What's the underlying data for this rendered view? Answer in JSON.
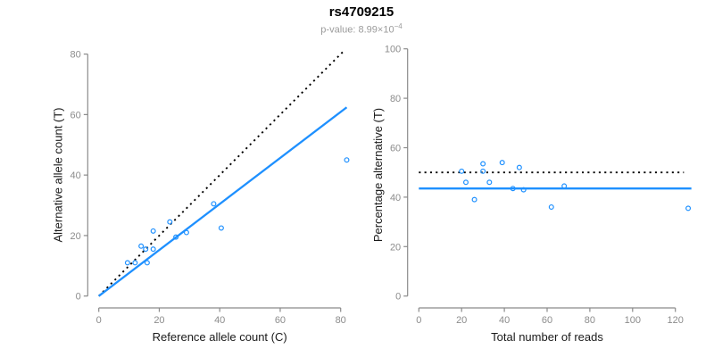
{
  "header": {
    "title": "rs4709215",
    "subtitle_prefix": "p-value: 8.99×10",
    "subtitle_exponent": "−4"
  },
  "colors": {
    "accent_blue": "#1E90FF",
    "identity_black": "#000000",
    "axis_gray": "#8a8a8a",
    "tick_text_gray": "#8c8c8c",
    "axis_title_color": "#1a1a1a"
  },
  "chart_data": [
    {
      "type": "scatter",
      "name": "allele-count-scatter",
      "xlabel": "Reference allele count (C)",
      "ylabel": "Alternative allele count (T)",
      "xlim": [
        0,
        80
      ],
      "ylim": [
        0,
        80
      ],
      "xticks": [
        0,
        20,
        40,
        60,
        80
      ],
      "yticks": [
        0,
        20,
        40,
        60,
        80
      ],
      "grid": false,
      "legend": "none",
      "points": [
        [
          9.5,
          11
        ],
        [
          12,
          11
        ],
        [
          16,
          11
        ],
        [
          14,
          16.5
        ],
        [
          15.5,
          15.5
        ],
        [
          18,
          15.5
        ],
        [
          18,
          21.5
        ],
        [
          23.5,
          24.5
        ],
        [
          25.5,
          19.5
        ],
        [
          29,
          21
        ],
        [
          38,
          30.5
        ],
        [
          40.5,
          22.5
        ],
        [
          82,
          45
        ]
      ],
      "point_color": "#1E90FF",
      "lines": [
        {
          "name": "identity-line",
          "style": "dotted",
          "color": "#000000",
          "x": [
            0,
            81.3
          ],
          "y": [
            0,
            81.3
          ]
        },
        {
          "name": "regression-line",
          "style": "solid",
          "color": "#1E90FF",
          "x": [
            0,
            82
          ],
          "y": [
            0,
            62.4
          ]
        }
      ]
    },
    {
      "type": "scatter",
      "name": "percentage-alternative-scatter",
      "xlabel": "Total number of reads",
      "ylabel": "Percentage alternative (T)",
      "xlim": [
        0,
        120
      ],
      "ylim": [
        0,
        100
      ],
      "xticks": [
        0,
        20,
        40,
        60,
        80,
        100,
        120
      ],
      "yticks": [
        0,
        20,
        40,
        60,
        80,
        100
      ],
      "grid": false,
      "legend": "none",
      "points": [
        [
          20,
          50.5
        ],
        [
          22,
          46
        ],
        [
          26,
          39
        ],
        [
          30,
          50.5
        ],
        [
          30,
          53.5
        ],
        [
          33,
          46
        ],
        [
          39,
          54
        ],
        [
          44,
          43.5
        ],
        [
          47,
          52
        ],
        [
          49,
          43
        ],
        [
          62,
          36
        ],
        [
          68,
          44.5
        ],
        [
          126,
          35.5
        ]
      ],
      "point_color": "#1E90FF",
      "lines": [
        {
          "name": "expected-50-line",
          "style": "dotted",
          "color": "#000000",
          "x": [
            0,
            124
          ],
          "y": [
            50,
            50
          ]
        },
        {
          "name": "mean-percentage-line",
          "style": "solid",
          "color": "#1E90FF",
          "x": [
            0,
            127.5
          ],
          "y": [
            43.5,
            43.5
          ]
        }
      ]
    }
  ]
}
